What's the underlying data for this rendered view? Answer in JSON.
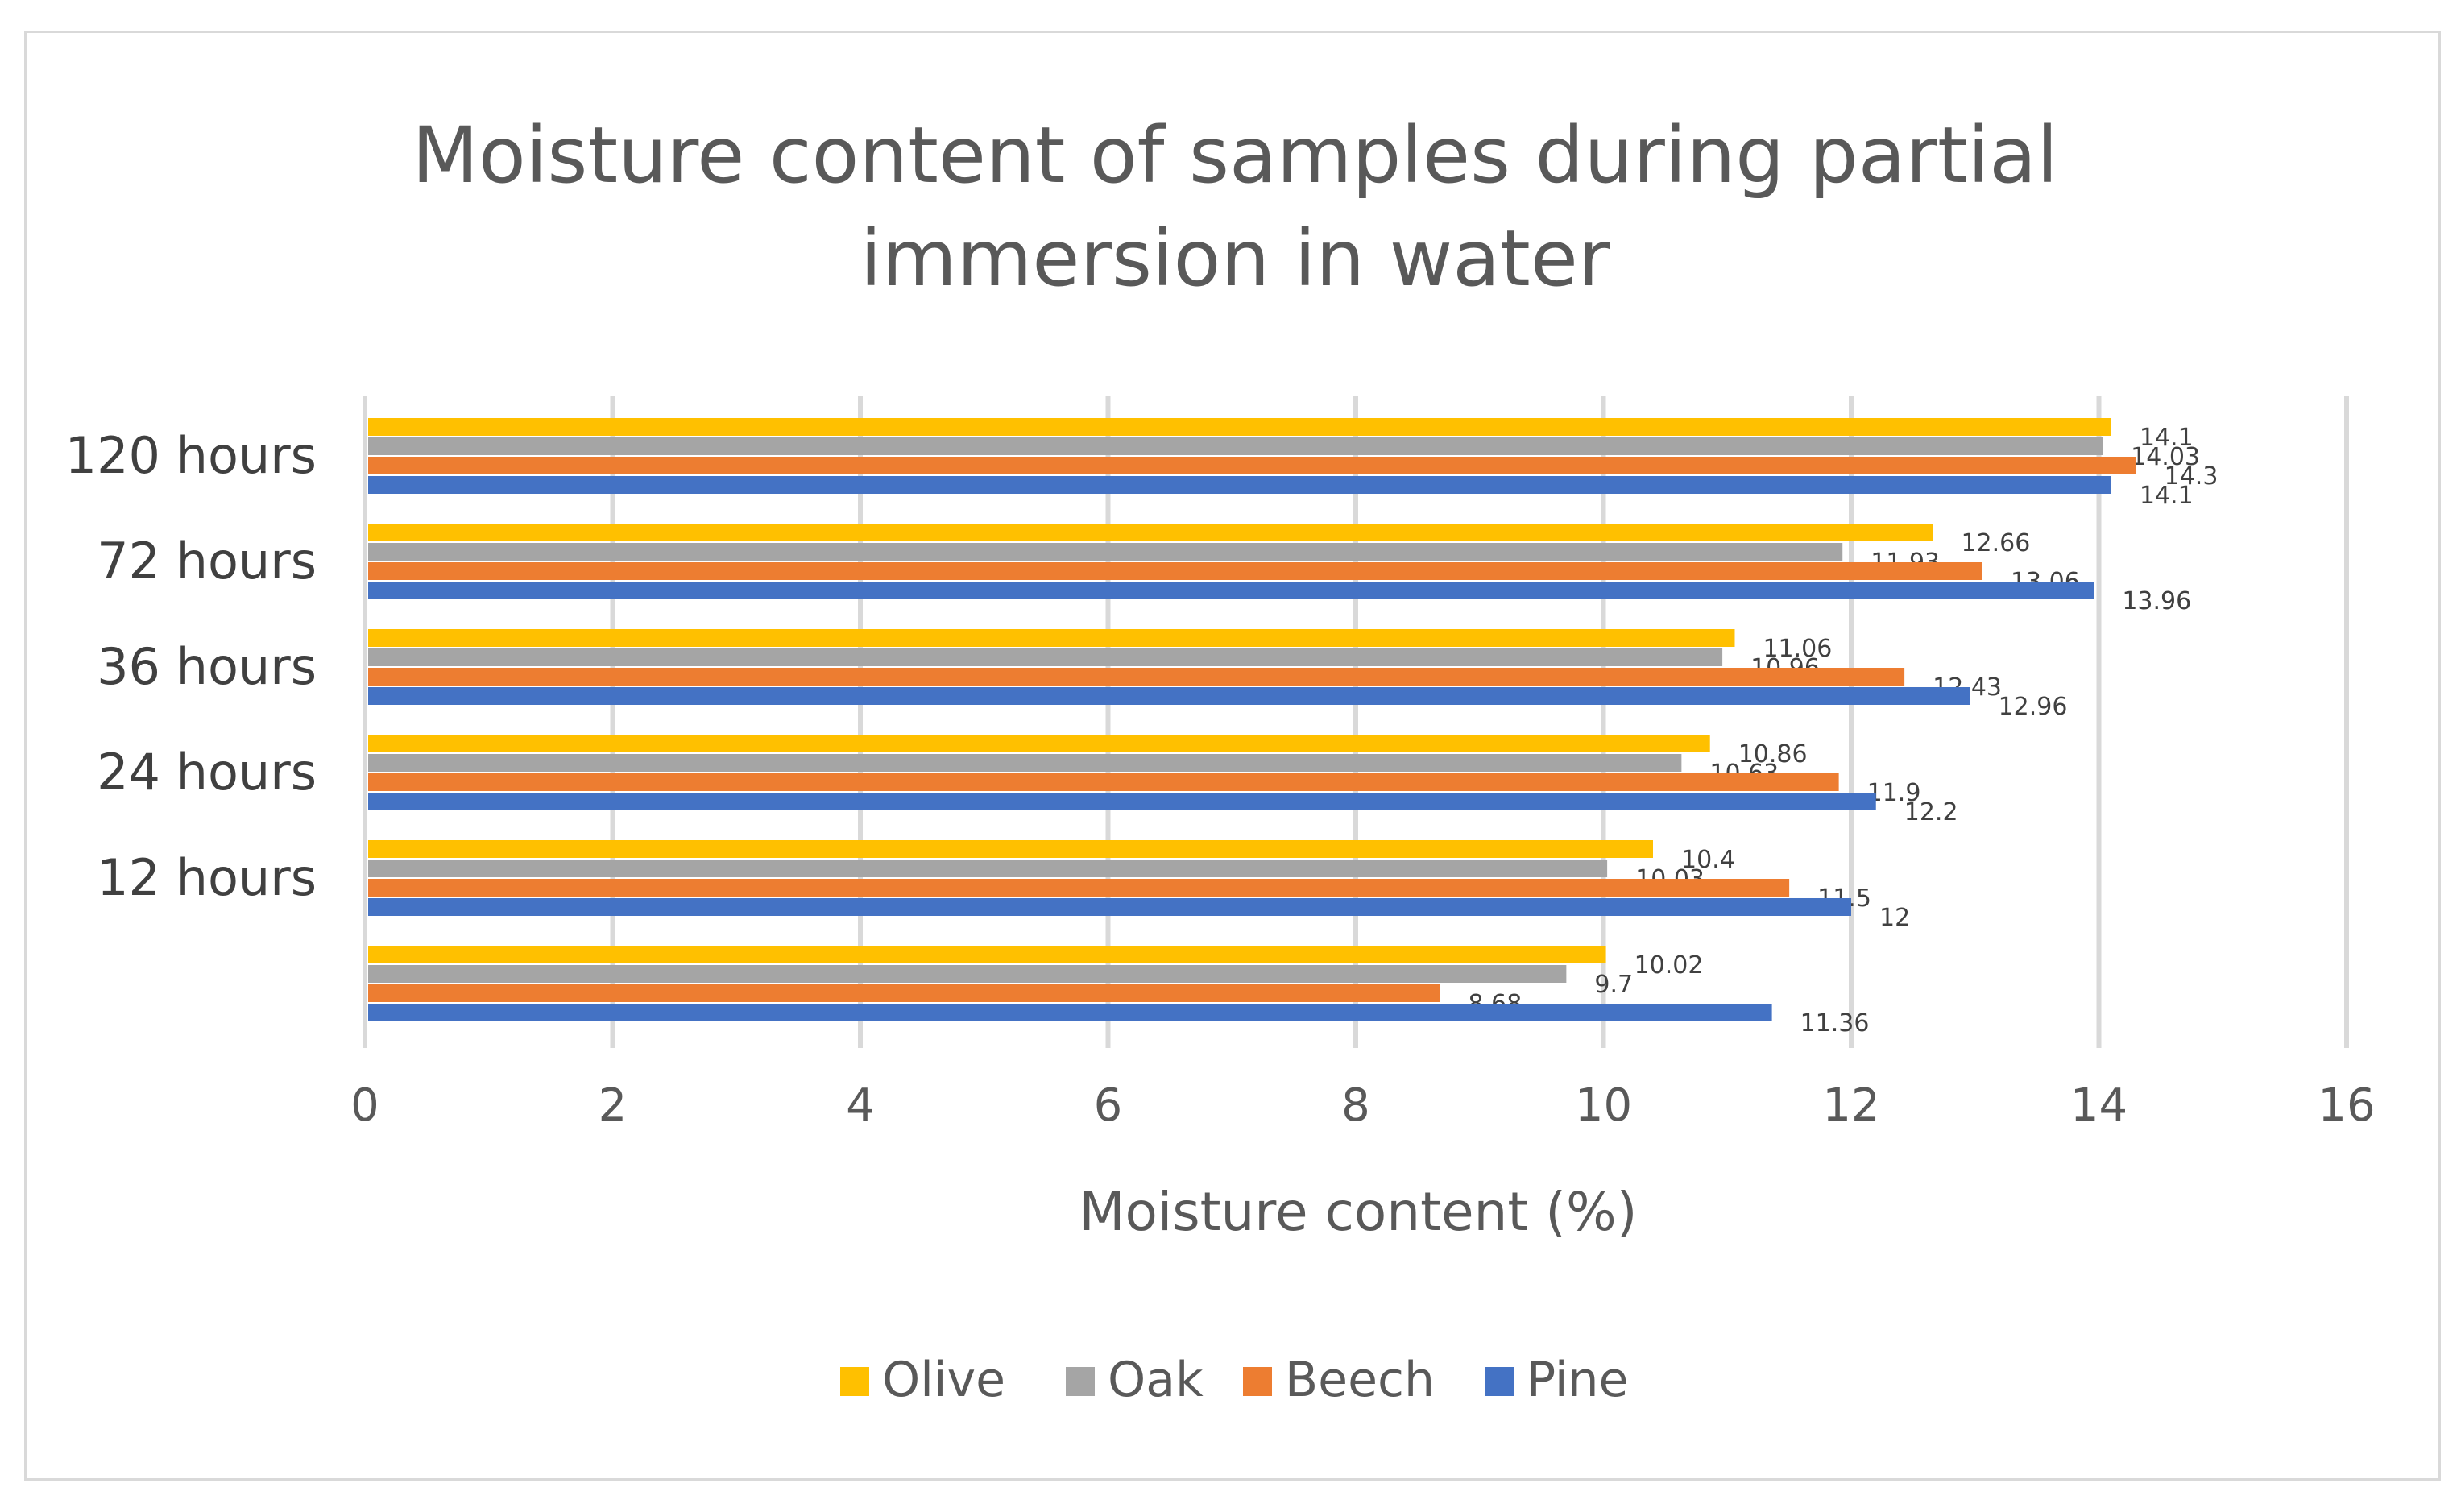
{
  "chart_data": {
    "type": "bar",
    "orientation": "horizontal",
    "title": "Moisture content of samples during partial immersion in water",
    "title_lines": [
      "Moisture content of samples during partial",
      "immersion in water"
    ],
    "xlabel": "Moisture content (%)",
    "ylabel": "",
    "xlim": [
      0,
      16
    ],
    "x_ticks": [
      0,
      2,
      4,
      6,
      8,
      10,
      12,
      14,
      16
    ],
    "x_tick_labels": [
      "0",
      "2",
      "4",
      "6",
      "8",
      "10",
      "12",
      "14",
      "16"
    ],
    "grid": true,
    "legend_position": "bottom",
    "categories": [
      "120 hours",
      "72 hours",
      "36 hours",
      "24 hours",
      "12 hours",
      ""
    ],
    "series": [
      {
        "name": "Olive",
        "color": "#ffc000",
        "values": [
          14.1,
          12.66,
          11.06,
          10.86,
          10.4,
          10.02
        ],
        "labels": [
          "14.1",
          "12.66",
          "11.06",
          "10.86",
          "10.4",
          "10.02"
        ]
      },
      {
        "name": "Oak",
        "color": "#a5a5a5",
        "values": [
          14.03,
          11.93,
          10.96,
          10.63,
          10.03,
          9.7
        ],
        "labels": [
          "14.03",
          "11.93",
          "10.96",
          "10.63",
          "10.03",
          "9.7"
        ]
      },
      {
        "name": "Beech",
        "color": "#ed7d31",
        "values": [
          14.3,
          13.06,
          12.43,
          11.9,
          11.5,
          8.68
        ],
        "labels": [
          "14.3",
          "13.06",
          "12.43",
          "11.9",
          "11.5",
          "8.68"
        ]
      },
      {
        "name": "Pine",
        "color": "#4472c4",
        "values": [
          14.1,
          13.96,
          12.96,
          12.2,
          12,
          11.36
        ],
        "labels": [
          "14.1",
          "13.96",
          "12.96",
          "12.2",
          "12",
          "11.36"
        ]
      }
    ]
  }
}
